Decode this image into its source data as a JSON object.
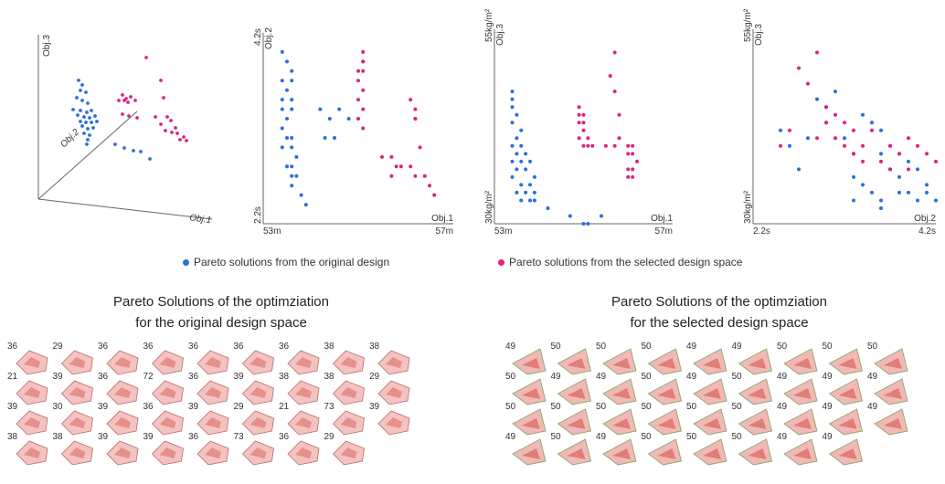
{
  "colors": {
    "original": "#2a6fdb",
    "selected": "#e0217f",
    "axis": "#666666"
  },
  "legend": {
    "original": "Pareto solutions from the original design",
    "selected": "Pareto solutions from the selected design space"
  },
  "titles": {
    "left_line1": "Pareto Solutions of the optimziation",
    "left_line2": "for the original design space",
    "right_line1": "Pareto Solutions of the optimziation",
    "right_line2": "for the selected design space"
  },
  "chart_data": [
    {
      "type": "scatter",
      "panel": "3d",
      "axes": {
        "x": "Obj.1",
        "y": "Obj.2",
        "z": "Obj.3"
      }
    },
    {
      "type": "scatter",
      "panel": "obj1-obj2",
      "xlabel": "Obj.1",
      "ylabel": "Obj.2",
      "xlim": [
        53,
        57
      ],
      "ylim": [
        2.2,
        4.2
      ],
      "xticks": [
        "53m",
        "57m"
      ],
      "yticks": [
        "2.2s",
        "4.2s"
      ],
      "series": [
        {
          "color": "blue",
          "x": [
            53.4,
            53.5,
            53.6,
            53.4,
            53.6,
            53.5,
            53.4,
            53.6,
            53.4,
            53.6,
            53.5,
            53.4,
            53.6,
            53.5,
            53.6,
            53.4,
            53.7,
            53.6,
            53.5,
            53.6,
            53.7,
            53.6,
            53.8,
            53.9,
            54.2,
            54.6,
            54.8,
            54.4,
            54.3,
            54.5
          ],
          "y": [
            4.0,
            3.9,
            3.8,
            3.7,
            3.7,
            3.6,
            3.5,
            3.5,
            3.4,
            3.4,
            3.3,
            3.2,
            3.1,
            3.1,
            3.0,
            3.0,
            2.9,
            2.8,
            2.8,
            2.7,
            2.7,
            2.6,
            2.5,
            2.4,
            3.4,
            3.4,
            3.3,
            3.3,
            3.1,
            3.1
          ]
        },
        {
          "color": "pink",
          "x": [
            55.1,
            55.1,
            55.1,
            55.0,
            55.1,
            55.0,
            55.1,
            55.0,
            55.1,
            55.0,
            55.1,
            55.5,
            55.7,
            55.8,
            55.9,
            55.7,
            56.1,
            56.2,
            56.2,
            56.2,
            56.3,
            56.1,
            56.2,
            56.4,
            56.5,
            56.6
          ],
          "y": [
            4.0,
            3.9,
            3.9,
            3.8,
            3.8,
            3.7,
            3.6,
            3.5,
            3.4,
            3.3,
            3.2,
            2.9,
            2.9,
            2.8,
            2.8,
            2.7,
            3.5,
            3.4,
            3.3,
            3.3,
            3.0,
            2.8,
            2.7,
            2.7,
            2.6,
            2.5
          ]
        }
      ]
    },
    {
      "type": "scatter",
      "panel": "obj1-obj3",
      "xlabel": "Obj.1",
      "ylabel": "Obj.3",
      "xlim": [
        53,
        57
      ],
      "ylim": [
        30,
        55
      ],
      "xticks": [
        "53m",
        "57m"
      ],
      "yticks": [
        "30kg/m²",
        "55kg/m²"
      ],
      "series": [
        {
          "color": "blue",
          "x": [
            53.4,
            53.4,
            53.4,
            53.5,
            53.4,
            53.6,
            53.5,
            53.4,
            53.6,
            53.5,
            53.7,
            53.4,
            53.6,
            53.8,
            53.5,
            53.7,
            53.9,
            53.4,
            53.6,
            53.8,
            53.5,
            53.7,
            53.9,
            53.6,
            53.8,
            53.9,
            54.2,
            54.7,
            55.0,
            55.1,
            55.4
          ],
          "y": [
            47,
            46,
            45,
            44,
            43,
            42,
            41,
            40,
            40,
            39,
            39,
            38,
            38,
            38,
            37,
            37,
            36,
            36,
            35,
            35,
            34,
            34,
            34,
            33,
            33,
            33,
            32,
            31,
            30,
            30,
            31
          ]
        },
        {
          "color": "pink",
          "x": [
            54.9,
            55.0,
            54.9,
            55.0,
            54.9,
            55.0,
            54.9,
            55.1,
            55.0,
            55.1,
            55.2,
            55.7,
            55.6,
            55.7,
            55.8,
            55.5,
            55.8,
            55.7,
            56.0,
            56.1,
            56.0,
            56.1,
            56.2,
            56.0,
            56.1,
            56.0,
            56.1
          ],
          "y": [
            45,
            44,
            44,
            43,
            43,
            42,
            41,
            41,
            40,
            40,
            40,
            52,
            49,
            47,
            44,
            40,
            41,
            40,
            40,
            40,
            39,
            39,
            38,
            37,
            37,
            36,
            36
          ]
        }
      ]
    },
    {
      "type": "scatter",
      "panel": "obj2-obj3",
      "xlabel": "Obj.2",
      "ylabel": "Obj.3",
      "xlim": [
        2.2,
        4.2
      ],
      "ylim": [
        30,
        55
      ],
      "xticks": [
        "2.2s",
        "4.2s"
      ],
      "yticks": [
        "30kg/m²",
        "55kg/m²"
      ],
      "series": [
        {
          "color": "blue",
          "x": [
            2.5,
            2.6,
            2.7,
            2.9,
            3.0,
            3.0,
            3.1,
            3.2,
            3.3,
            3.3,
            3.4,
            3.5,
            3.6,
            3.6,
            3.6,
            3.7,
            3.7,
            3.8,
            3.8,
            3.8,
            3.9,
            3.9,
            4.0,
            4.0,
            4.1,
            4.1,
            4.2,
            3.4,
            3.5,
            3.3,
            3.6,
            2.8
          ],
          "y": [
            42,
            40,
            37,
            46,
            45,
            43,
            47,
            41,
            39,
            36,
            44,
            43,
            42,
            32,
            33,
            40,
            37,
            39,
            36,
            34,
            38,
            34,
            37,
            33,
            35,
            34,
            33,
            35,
            34,
            33,
            39,
            41
          ]
        },
        {
          "color": "pink",
          "x": [
            2.5,
            2.6,
            2.7,
            2.8,
            2.9,
            2.9,
            3.0,
            3.0,
            3.1,
            3.1,
            3.2,
            3.3,
            3.3,
            3.4,
            3.5,
            3.6,
            3.7,
            3.7,
            3.8,
            3.9,
            3.9,
            4.0,
            4.1,
            4.2,
            3.2,
            3.4
          ],
          "y": [
            40,
            42,
            50,
            48,
            52,
            41,
            45,
            43,
            41,
            44,
            40,
            42,
            39,
            38,
            42,
            38,
            40,
            37,
            39,
            37,
            41,
            40,
            39,
            38,
            43,
            40
          ]
        }
      ]
    }
  ],
  "grid_left": {
    "rows": [
      [
        "36",
        "29",
        "36",
        "36",
        "36",
        "36",
        "36",
        "38",
        "38"
      ],
      [
        "21",
        "39",
        "36",
        "72",
        "36",
        "39",
        "38",
        "38",
        "29"
      ],
      [
        "39",
        "30",
        "39",
        "36",
        "39",
        "29",
        "21",
        "73",
        "39"
      ],
      [
        "38",
        "38",
        "39",
        "39",
        "36",
        "73",
        "36",
        "29"
      ]
    ]
  },
  "grid_right": {
    "rows": [
      [
        "49",
        "50",
        "50",
        "50",
        "49",
        "49",
        "50",
        "50",
        "50"
      ],
      [
        "50",
        "49",
        "49",
        "50",
        "49",
        "50",
        "49",
        "49",
        "49"
      ],
      [
        "50",
        "50",
        "50",
        "50",
        "50",
        "50",
        "49",
        "49",
        "49"
      ],
      [
        "49",
        "50",
        "49",
        "50",
        "50",
        "50",
        "49",
        "49"
      ]
    ]
  }
}
